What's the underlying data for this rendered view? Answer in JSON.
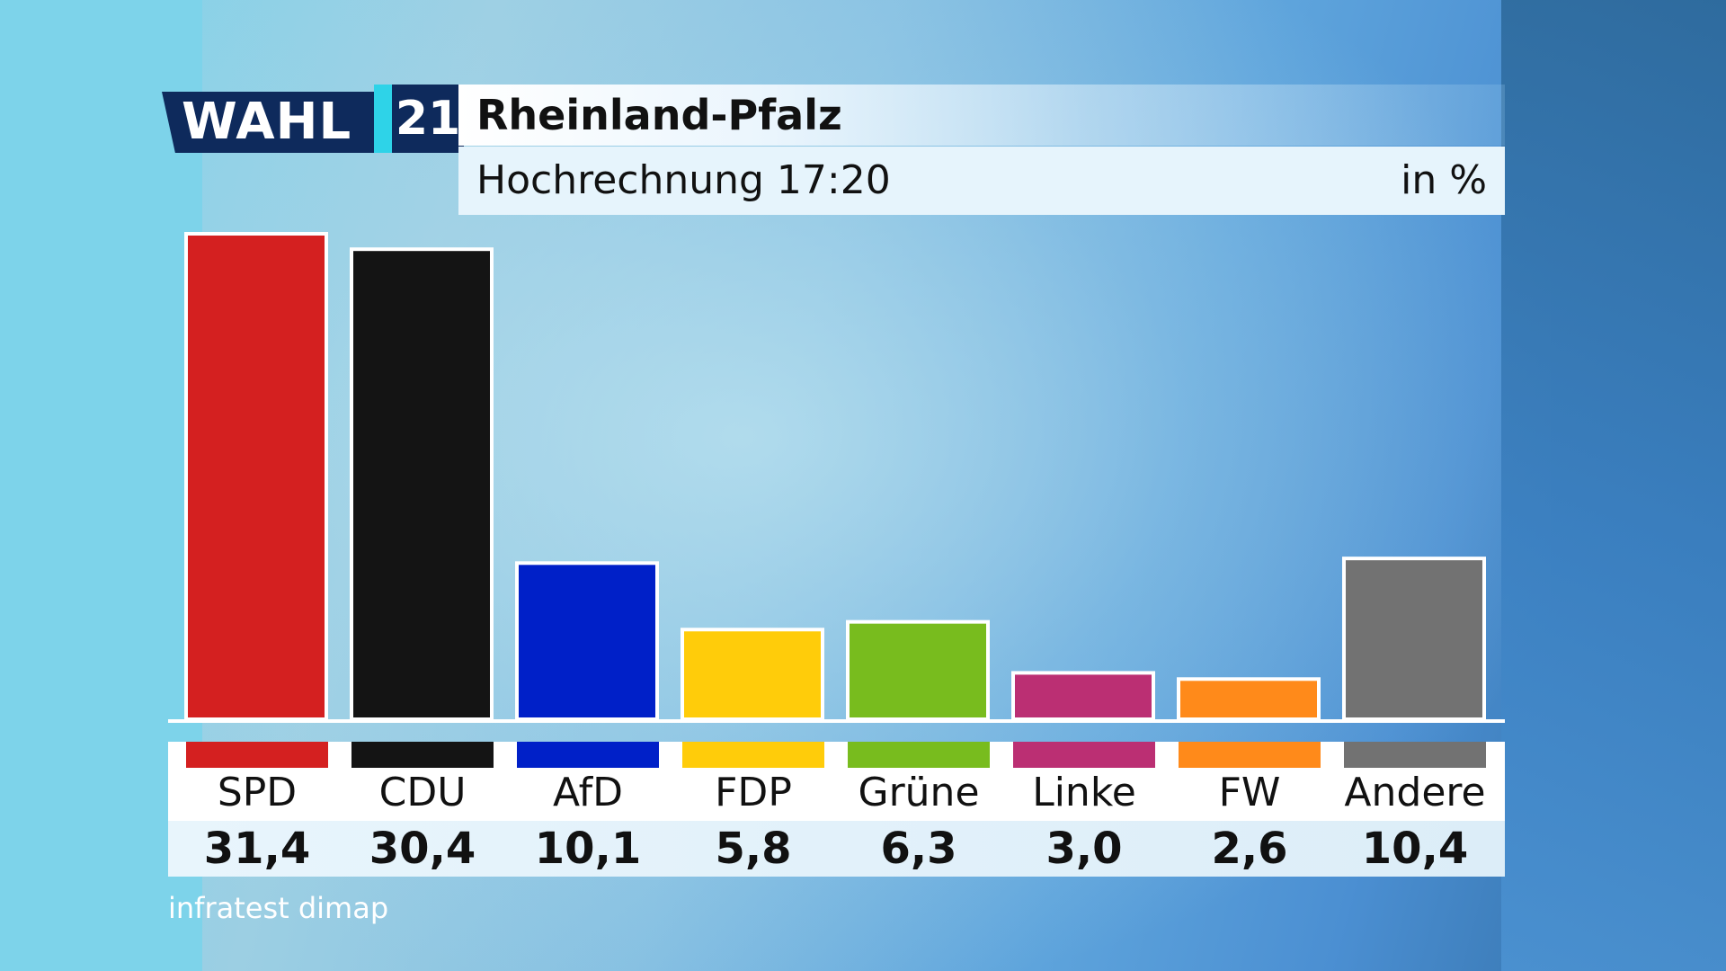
{
  "header": {
    "logo_text": "WAHL",
    "logo_year": "21",
    "title": "Rheinland-Pfalz",
    "subtitle": "Hochrechnung 17:20",
    "unit": "in %"
  },
  "source": "infratest dimap",
  "chart_data": {
    "type": "bar",
    "title": "Rheinland-Pfalz",
    "subtitle": "Hochrechnung 17:20",
    "ylabel": "in %",
    "categories": [
      "SPD",
      "CDU",
      "AfD",
      "FDP",
      "Grüne",
      "Linke",
      "FW",
      "Andere"
    ],
    "values": [
      31.4,
      30.4,
      10.1,
      5.8,
      6.3,
      3.0,
      2.6,
      10.4
    ],
    "value_labels": [
      "31,4",
      "30,4",
      "10,1",
      "5,8",
      "6,3",
      "3,0",
      "2,6",
      "10,4"
    ],
    "colors": [
      "#d42020",
      "#141414",
      "#0020c8",
      "#ffcc0a",
      "#78bc1e",
      "#bb2f73",
      "#ff8a1a",
      "#727272"
    ],
    "ylim": [
      0,
      31.4
    ],
    "grid": false,
    "legend": "below"
  }
}
